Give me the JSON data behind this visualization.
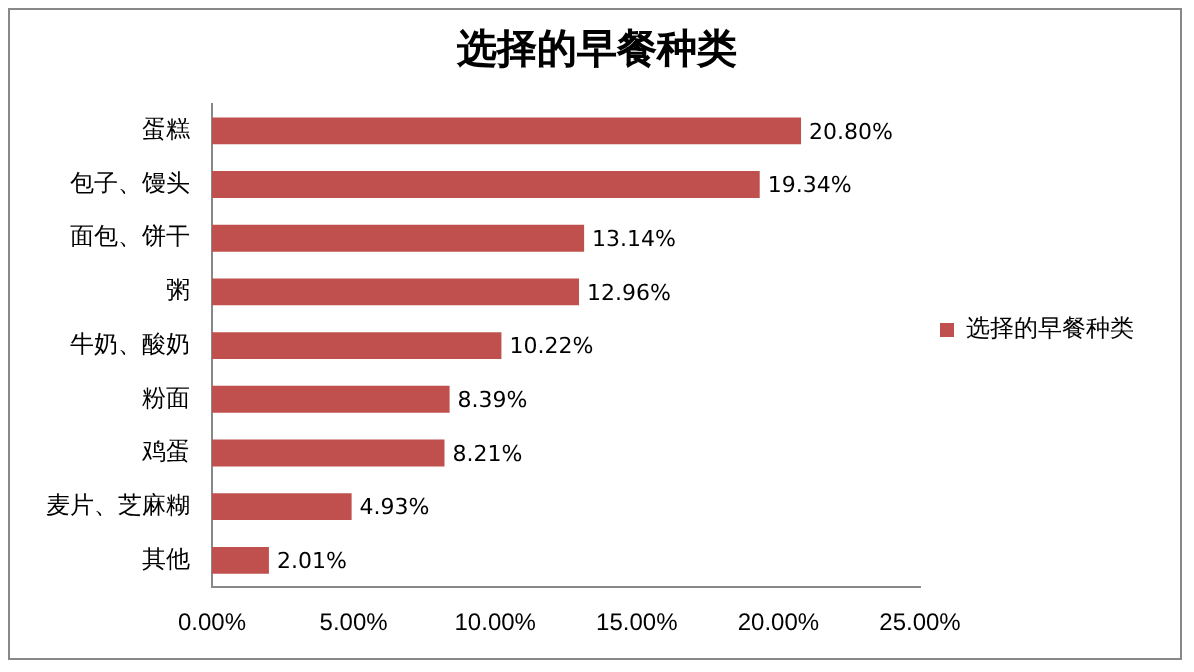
{
  "chart_data": {
    "type": "bar",
    "orientation": "horizontal",
    "title": "选择的早餐种类",
    "categories": [
      "蛋糕",
      "包子、馒头",
      "面包、饼干",
      "粥",
      "牛奶、酸奶",
      "粉面",
      "鸡蛋",
      "麦片、芝麻糊",
      "其他"
    ],
    "series": [
      {
        "name": "选择的早餐种类",
        "color": "#c0504d",
        "values": [
          20.8,
          19.34,
          13.14,
          12.96,
          10.22,
          8.39,
          8.21,
          4.93,
          2.01
        ],
        "value_labels": [
          "20.80%",
          "19.34%",
          "13.14%",
          "12.96%",
          "10.22%",
          "8.39%",
          "8.21%",
          "4.93%",
          "2.01%"
        ]
      }
    ],
    "xlim": [
      0,
      25
    ],
    "xticks": [
      {
        "value": 0,
        "label": "0.00%"
      },
      {
        "value": 5,
        "label": "5.00%"
      },
      {
        "value": 10,
        "label": "10.00%"
      },
      {
        "value": 15,
        "label": "15.00%"
      },
      {
        "value": 20,
        "label": "20.00%"
      },
      {
        "value": 25,
        "label": "25.00%"
      }
    ],
    "grid": false,
    "legend": "right"
  }
}
